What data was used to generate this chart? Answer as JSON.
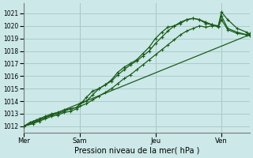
{
  "xlabel": "Pression niveau de la mer( hPa )",
  "bg_color": "#cce8e8",
  "grid_color": "#aacccc",
  "line_color": "#1a5c1a",
  "ylim": [
    1011.5,
    1021.8
  ],
  "yticks": [
    1012,
    1013,
    1014,
    1015,
    1016,
    1017,
    1018,
    1019,
    1020,
    1021
  ],
  "xlim": [
    0,
    72
  ],
  "day_positions": [
    0,
    18,
    42,
    63
  ],
  "day_labels": [
    "Mer",
    "Sam",
    "Jeu",
    "Ven"
  ],
  "series1": {
    "x": [
      0,
      2,
      3,
      4,
      5,
      7,
      9,
      11,
      13,
      15,
      17,
      18,
      19,
      20,
      22,
      24,
      26,
      28,
      30,
      32,
      34,
      36,
      38,
      40,
      42,
      44,
      46,
      48,
      50,
      52,
      54,
      56,
      58,
      60,
      62,
      63,
      65,
      68,
      71,
      72
    ],
    "y": [
      1012.0,
      1012.3,
      1012.4,
      1012.5,
      1012.6,
      1012.8,
      1013.0,
      1013.1,
      1013.3,
      1013.4,
      1013.5,
      1013.8,
      1014.0,
      1014.3,
      1014.8,
      1015.0,
      1015.3,
      1015.7,
      1016.3,
      1016.7,
      1017.0,
      1017.3,
      1017.8,
      1018.3,
      1019.0,
      1019.5,
      1019.9,
      1020.0,
      1020.2,
      1020.5,
      1020.6,
      1020.5,
      1020.2,
      1020.1,
      1020.0,
      1021.1,
      1020.5,
      1019.8,
      1019.5,
      1019.3
    ]
  },
  "series2": {
    "x": [
      0,
      3,
      5,
      7,
      9,
      11,
      13,
      15,
      17,
      18,
      20,
      22,
      24,
      26,
      28,
      30,
      32,
      34,
      36,
      38,
      40,
      42,
      44,
      46,
      48,
      50,
      52,
      54,
      56,
      58,
      60,
      62,
      63,
      65,
      68,
      71,
      72
    ],
    "y": [
      1012.0,
      1012.3,
      1012.5,
      1012.7,
      1012.9,
      1013.0,
      1013.2,
      1013.4,
      1013.5,
      1013.8,
      1014.0,
      1014.5,
      1015.0,
      1015.3,
      1015.6,
      1016.1,
      1016.5,
      1016.9,
      1017.2,
      1017.6,
      1018.0,
      1018.6,
      1019.1,
      1019.6,
      1020.0,
      1020.3,
      1020.5,
      1020.6,
      1020.5,
      1020.3,
      1020.1,
      1019.9,
      1020.5,
      1019.7,
      1019.4,
      1019.3,
      1019.2
    ]
  },
  "series3": {
    "x": [
      0,
      72
    ],
    "y": [
      1012.0,
      1019.3
    ]
  },
  "series4": {
    "x": [
      0,
      3,
      5,
      7,
      9,
      11,
      13,
      15,
      17,
      18,
      20,
      22,
      24,
      26,
      28,
      30,
      32,
      34,
      36,
      38,
      40,
      42,
      44,
      46,
      48,
      50,
      52,
      54,
      56,
      58,
      60,
      62,
      63,
      65,
      68,
      71,
      72
    ],
    "y": [
      1012.0,
      1012.2,
      1012.4,
      1012.6,
      1012.8,
      1012.9,
      1013.1,
      1013.2,
      1013.4,
      1013.6,
      1013.8,
      1014.1,
      1014.4,
      1014.7,
      1015.0,
      1015.4,
      1015.8,
      1016.1,
      1016.5,
      1016.9,
      1017.3,
      1017.7,
      1018.1,
      1018.5,
      1018.9,
      1019.3,
      1019.6,
      1019.8,
      1020.0,
      1019.9,
      1020.0,
      1020.0,
      1020.8,
      1019.8,
      1019.5,
      1019.3,
      1019.4
    ]
  }
}
